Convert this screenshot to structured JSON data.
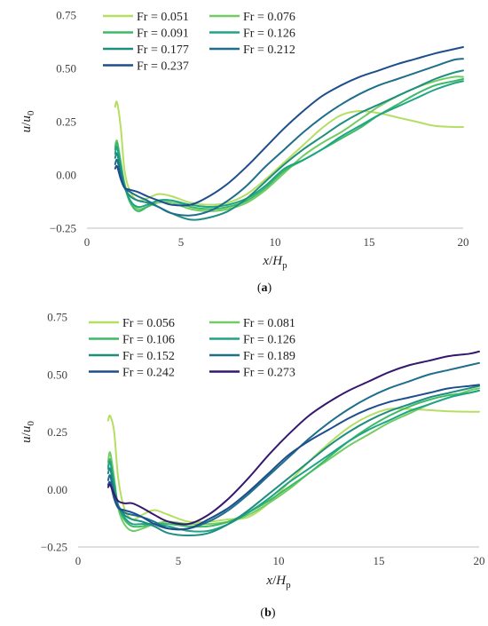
{
  "chart_data": [
    {
      "type": "line",
      "title": "",
      "caption_prefix": "(",
      "caption_letter": "a",
      "caption_suffix": ")",
      "xlabel_main": "x",
      "xlabel_sep": "/",
      "xlabel_var": "H",
      "xlabel_sub": "p",
      "ylabel_main": "u",
      "ylabel_sep": "/",
      "ylabel_var": "u",
      "ylabel_sub": "0",
      "xlim": [
        0,
        20
      ],
      "ylim": [
        -0.25,
        0.75
      ],
      "xticks": [
        0,
        5,
        10,
        15,
        20
      ],
      "yticks": [
        -0.25,
        0.0,
        0.25,
        0.5,
        0.75
      ],
      "xtick_labels": [
        "0",
        "5",
        "10",
        "15",
        "20"
      ],
      "ytick_labels": [
        "−0.25",
        "0.00",
        "0.25",
        "0.50",
        "0.75"
      ],
      "legend_position": "top-left",
      "grid": false,
      "series": [
        {
          "name": "Fr = 0.051",
          "color": "#b5de62",
          "x": [
            1.5,
            1.6,
            1.8,
            2.0,
            2.3,
            2.7,
            3.2,
            3.8,
            4.5,
            5.5,
            6.5,
            7.5,
            8.5,
            9.5,
            10.5,
            11.5,
            12.5,
            13.5,
            14.5,
            15.5,
            16.5,
            17.5,
            18.5,
            19.5,
            20
          ],
          "y": [
            0.32,
            0.34,
            0.22,
            0.02,
            -0.08,
            -0.12,
            -0.11,
            -0.09,
            -0.1,
            -0.13,
            -0.14,
            -0.13,
            -0.09,
            -0.02,
            0.06,
            0.14,
            0.22,
            0.28,
            0.3,
            0.29,
            0.27,
            0.25,
            0.23,
            0.225,
            0.225
          ]
        },
        {
          "name": "Fr = 0.076",
          "color": "#72cc63",
          "x": [
            1.5,
            1.6,
            1.8,
            2.0,
            2.3,
            2.7,
            3.2,
            3.8,
            4.5,
            5.5,
            6.5,
            7.5,
            8.5,
            9.5,
            10.5,
            11.5,
            12.5,
            13.5,
            14.5,
            15.5,
            16.5,
            17.5,
            18.5,
            19.5,
            20
          ],
          "y": [
            0.13,
            0.16,
            0.06,
            -0.04,
            -0.12,
            -0.16,
            -0.15,
            -0.13,
            -0.13,
            -0.16,
            -0.17,
            -0.16,
            -0.13,
            -0.07,
            0.01,
            0.09,
            0.15,
            0.2,
            0.26,
            0.32,
            0.37,
            0.41,
            0.44,
            0.46,
            0.46
          ]
        },
        {
          "name": "Fr = 0.091",
          "color": "#3cba66",
          "x": [
            1.5,
            1.6,
            1.8,
            2.0,
            2.3,
            2.7,
            3.2,
            3.8,
            4.5,
            5.5,
            6.5,
            7.5,
            8.5,
            9.5,
            10.5,
            11.5,
            12.5,
            13.5,
            14.5,
            15.5,
            16.5,
            17.5,
            18.5,
            19.5,
            20
          ],
          "y": [
            0.12,
            0.15,
            0.05,
            -0.05,
            -0.13,
            -0.17,
            -0.15,
            -0.12,
            -0.12,
            -0.15,
            -0.16,
            -0.15,
            -0.12,
            -0.06,
            0.02,
            0.07,
            0.12,
            0.17,
            0.22,
            0.28,
            0.33,
            0.38,
            0.42,
            0.44,
            0.45
          ]
        },
        {
          "name": "Fr = 0.126",
          "color": "#20a486",
          "x": [
            1.5,
            1.6,
            1.8,
            2.0,
            2.3,
            2.7,
            3.2,
            3.8,
            4.5,
            5.5,
            6.5,
            7.5,
            8.5,
            9.5,
            10.5,
            11.5,
            12.5,
            13.5,
            14.5,
            15.5,
            16.5,
            17.5,
            18.5,
            19.5,
            20
          ],
          "y": [
            0.1,
            0.13,
            0.04,
            -0.05,
            -0.12,
            -0.15,
            -0.14,
            -0.12,
            -0.12,
            -0.14,
            -0.15,
            -0.14,
            -0.11,
            -0.05,
            0.03,
            0.07,
            0.12,
            0.18,
            0.23,
            0.28,
            0.32,
            0.36,
            0.4,
            0.43,
            0.44
          ]
        },
        {
          "name": "Fr = 0.177",
          "color": "#1f8e7f",
          "x": [
            1.5,
            1.6,
            1.8,
            2.0,
            2.3,
            2.7,
            3.2,
            3.8,
            4.5,
            5.5,
            6.5,
            7.5,
            8.5,
            9.5,
            10.5,
            11.5,
            12.5,
            13.5,
            14.5,
            15.5,
            16.5,
            17.5,
            18.5,
            19.5,
            20
          ],
          "y": [
            0.08,
            0.1,
            0.02,
            -0.06,
            -0.1,
            -0.12,
            -0.13,
            -0.15,
            -0.18,
            -0.21,
            -0.2,
            -0.17,
            -0.11,
            -0.03,
            0.05,
            0.12,
            0.18,
            0.24,
            0.29,
            0.33,
            0.37,
            0.41,
            0.45,
            0.48,
            0.49
          ]
        },
        {
          "name": "Fr = 0.212",
          "color": "#1e6e8c",
          "x": [
            1.5,
            1.6,
            1.8,
            2.0,
            2.3,
            2.7,
            3.2,
            3.8,
            4.5,
            5.5,
            6.5,
            7.5,
            8.5,
            9.5,
            10.5,
            11.5,
            12.5,
            13.5,
            14.5,
            15.5,
            16.5,
            17.5,
            18.5,
            19.5,
            20
          ],
          "y": [
            0.05,
            0.07,
            0.0,
            -0.06,
            -0.08,
            -0.1,
            -0.12,
            -0.15,
            -0.18,
            -0.19,
            -0.17,
            -0.12,
            -0.05,
            0.04,
            0.12,
            0.2,
            0.27,
            0.33,
            0.38,
            0.42,
            0.45,
            0.48,
            0.51,
            0.54,
            0.545
          ]
        },
        {
          "name": "Fr = 0.237",
          "color": "#1d4e8c",
          "x": [
            1.5,
            1.6,
            1.8,
            2.0,
            2.3,
            2.7,
            3.2,
            3.8,
            4.5,
            5.5,
            6.5,
            7.5,
            8.5,
            9.5,
            10.5,
            11.5,
            12.5,
            13.5,
            14.5,
            15.5,
            16.5,
            17.5,
            18.5,
            19.5,
            20
          ],
          "y": [
            0.03,
            0.04,
            -0.02,
            -0.06,
            -0.07,
            -0.08,
            -0.1,
            -0.12,
            -0.14,
            -0.14,
            -0.1,
            -0.04,
            0.04,
            0.13,
            0.22,
            0.3,
            0.37,
            0.42,
            0.46,
            0.49,
            0.52,
            0.545,
            0.57,
            0.59,
            0.6
          ]
        }
      ]
    },
    {
      "type": "line",
      "title": "",
      "caption_prefix": "(",
      "caption_letter": "b",
      "caption_suffix": ")",
      "xlabel_main": "x",
      "xlabel_sep": "/",
      "xlabel_var": "H",
      "xlabel_sub": "p",
      "ylabel_main": "u",
      "ylabel_sep": "/",
      "ylabel_var": "u",
      "ylabel_sub": "0",
      "xlim": [
        0,
        20
      ],
      "ylim": [
        -0.25,
        0.75
      ],
      "xticks": [
        0,
        5,
        10,
        15,
        20
      ],
      "yticks": [
        -0.25,
        0.0,
        0.25,
        0.5,
        0.75
      ],
      "xtick_labels": [
        "0",
        "5",
        "10",
        "15",
        "20"
      ],
      "ytick_labels": [
        "−0.25",
        "0.00",
        "0.25",
        "0.50",
        "0.75"
      ],
      "legend_position": "top-left",
      "grid": false,
      "series": [
        {
          "name": "Fr = 0.056",
          "color": "#b5de62",
          "x": [
            1.5,
            1.6,
            1.8,
            2.0,
            2.3,
            2.7,
            3.2,
            3.8,
            4.5,
            5.5,
            6.5,
            7.5,
            8.5,
            9.5,
            10.5,
            11.5,
            12.5,
            13.5,
            14.5,
            15.5,
            16.5,
            17.5,
            18.5,
            19.5,
            20
          ],
          "y": [
            0.3,
            0.32,
            0.25,
            0.05,
            -0.08,
            -0.13,
            -0.11,
            -0.09,
            -0.11,
            -0.14,
            -0.14,
            -0.13,
            -0.12,
            -0.06,
            0.03,
            0.12,
            0.2,
            0.27,
            0.32,
            0.35,
            0.35,
            0.345,
            0.34,
            0.338,
            0.338
          ]
        },
        {
          "name": "Fr = 0.081",
          "color": "#72cc63",
          "x": [
            1.5,
            1.6,
            1.8,
            2.0,
            2.3,
            2.7,
            3.2,
            3.8,
            4.5,
            5.5,
            6.5,
            7.5,
            8.5,
            9.5,
            10.5,
            11.5,
            12.5,
            13.5,
            14.5,
            15.5,
            16.5,
            17.5,
            18.5,
            19.5,
            20
          ],
          "y": [
            0.12,
            0.16,
            0.05,
            -0.08,
            -0.15,
            -0.18,
            -0.17,
            -0.15,
            -0.14,
            -0.15,
            -0.15,
            -0.14,
            -0.11,
            -0.06,
            0.0,
            0.07,
            0.13,
            0.19,
            0.24,
            0.29,
            0.33,
            0.37,
            0.4,
            0.43,
            0.44
          ]
        },
        {
          "name": "Fr = 0.106",
          "color": "#3cba66",
          "x": [
            1.5,
            1.6,
            1.8,
            2.0,
            2.3,
            2.7,
            3.2,
            3.8,
            4.5,
            5.5,
            6.5,
            7.5,
            8.5,
            9.5,
            10.5,
            11.5,
            12.5,
            13.5,
            14.5,
            15.5,
            16.5,
            17.5,
            18.5,
            19.5,
            20
          ],
          "y": [
            0.1,
            0.13,
            0.03,
            -0.07,
            -0.13,
            -0.16,
            -0.16,
            -0.15,
            -0.15,
            -0.16,
            -0.16,
            -0.14,
            -0.1,
            -0.05,
            0.01,
            0.07,
            0.14,
            0.21,
            0.27,
            0.32,
            0.36,
            0.39,
            0.41,
            0.42,
            0.43
          ]
        },
        {
          "name": "Fr = 0.126",
          "color": "#20a486",
          "x": [
            1.5,
            1.6,
            1.8,
            2.0,
            2.3,
            2.7,
            3.2,
            3.8,
            4.5,
            5.5,
            6.5,
            7.5,
            8.5,
            9.5,
            10.5,
            11.5,
            12.5,
            13.5,
            14.5,
            15.5,
            16.5,
            17.5,
            18.5,
            19.5,
            20
          ],
          "y": [
            0.09,
            0.12,
            0.02,
            -0.07,
            -0.12,
            -0.15,
            -0.15,
            -0.15,
            -0.16,
            -0.18,
            -0.18,
            -0.15,
            -0.1,
            -0.04,
            0.03,
            0.09,
            0.15,
            0.21,
            0.26,
            0.3,
            0.34,
            0.37,
            0.4,
            0.42,
            0.43
          ]
        },
        {
          "name": "Fr = 0.152",
          "color": "#1f8e7f",
          "x": [
            1.5,
            1.6,
            1.8,
            2.0,
            2.3,
            2.7,
            3.2,
            3.8,
            4.5,
            5.5,
            6.5,
            7.5,
            8.5,
            9.5,
            10.5,
            11.5,
            12.5,
            13.5,
            14.5,
            15.5,
            16.5,
            17.5,
            18.5,
            19.5,
            20
          ],
          "y": [
            0.07,
            0.09,
            0.0,
            -0.07,
            -0.11,
            -0.13,
            -0.14,
            -0.16,
            -0.19,
            -0.2,
            -0.19,
            -0.15,
            -0.09,
            -0.02,
            0.05,
            0.12,
            0.19,
            0.25,
            0.3,
            0.34,
            0.37,
            0.4,
            0.42,
            0.44,
            0.45
          ]
        },
        {
          "name": "Fr = 0.189",
          "color": "#1e6e8c",
          "x": [
            1.5,
            1.6,
            1.8,
            2.0,
            2.3,
            2.7,
            3.2,
            3.8,
            4.5,
            5.5,
            6.5,
            7.5,
            8.5,
            9.5,
            10.5,
            11.5,
            12.5,
            13.5,
            14.5,
            15.5,
            16.5,
            17.5,
            18.5,
            19.5,
            20
          ],
          "y": [
            0.04,
            0.06,
            -0.02,
            -0.07,
            -0.1,
            -0.11,
            -0.12,
            -0.14,
            -0.17,
            -0.17,
            -0.14,
            -0.09,
            -0.02,
            0.06,
            0.14,
            0.22,
            0.29,
            0.35,
            0.4,
            0.44,
            0.47,
            0.5,
            0.52,
            0.54,
            0.55
          ]
        },
        {
          "name": "Fr = 0.242",
          "color": "#1d4e8c",
          "x": [
            1.5,
            1.6,
            1.8,
            2.0,
            2.3,
            2.7,
            3.2,
            3.8,
            4.5,
            5.5,
            6.5,
            7.5,
            8.5,
            9.5,
            10.5,
            11.5,
            12.5,
            13.5,
            14.5,
            15.5,
            16.5,
            17.5,
            18.5,
            19.5,
            20
          ],
          "y": [
            0.02,
            0.03,
            -0.04,
            -0.08,
            -0.09,
            -0.1,
            -0.12,
            -0.15,
            -0.17,
            -0.17,
            -0.13,
            -0.08,
            -0.01,
            0.07,
            0.15,
            0.21,
            0.26,
            0.31,
            0.35,
            0.38,
            0.4,
            0.42,
            0.44,
            0.45,
            0.455
          ]
        },
        {
          "name": "Fr = 0.273",
          "color": "#35186e",
          "x": [
            1.5,
            1.6,
            1.8,
            2.0,
            2.3,
            2.7,
            3.2,
            3.8,
            4.5,
            5.5,
            6.5,
            7.5,
            8.5,
            9.5,
            10.5,
            11.5,
            12.5,
            13.5,
            14.5,
            15.5,
            16.5,
            17.5,
            18.5,
            19.5,
            20
          ],
          "y": [
            0.01,
            0.02,
            -0.02,
            -0.05,
            -0.06,
            -0.06,
            -0.08,
            -0.11,
            -0.14,
            -0.15,
            -0.11,
            -0.04,
            0.05,
            0.15,
            0.24,
            0.32,
            0.38,
            0.43,
            0.47,
            0.51,
            0.54,
            0.56,
            0.58,
            0.59,
            0.6
          ]
        }
      ]
    }
  ]
}
